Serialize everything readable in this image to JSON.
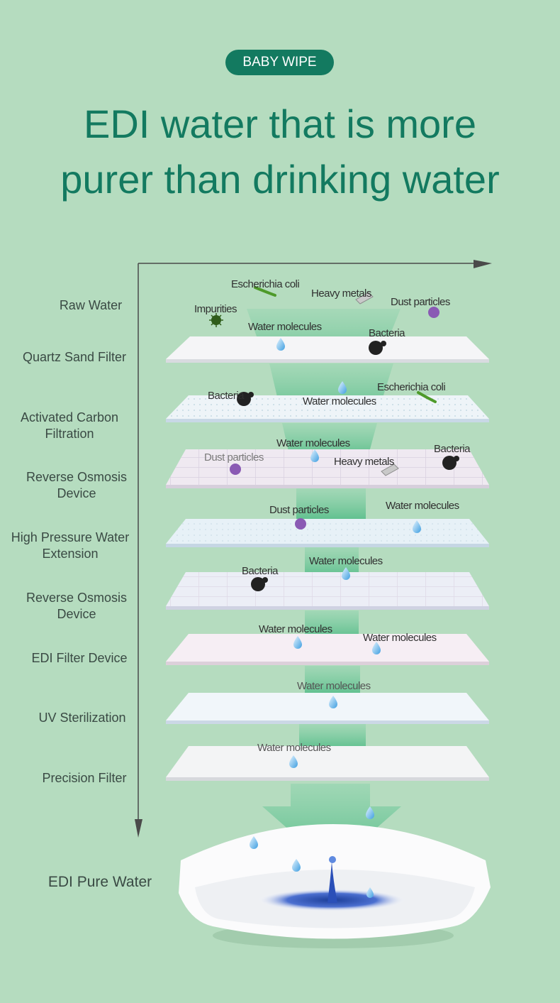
{
  "badge": "BABY WIPE",
  "headline": {
    "line1": "EDI water that is more",
    "line2": "purer than drinking water"
  },
  "stages": [
    "Raw Water",
    "Quartz Sand Filter",
    "Activated Carbon Filtration",
    "Reverse Osmosis Device",
    "High Pressure Water Extension",
    "Reverse Osmosis Device",
    "EDI Filter Device",
    "UV Sterilization",
    "Precision Filter",
    "EDI Pure Water"
  ],
  "particle_labels": {
    "raw_ecoli": "Escherichia coli",
    "raw_heavy_metals": "Heavy metals",
    "raw_dust": "Dust particles",
    "raw_impurities": "Impurities",
    "raw_water": "Water molecules",
    "raw_bacteria": "Bacteria",
    "quartz_bacteria": "Bacteria",
    "quartz_ecoli": "Escherichia coli",
    "quartz_water": "Water molecules",
    "carbon_water": "Water molecules",
    "carbon_dust": "Dust particles",
    "carbon_bacteria": "Bacteria",
    "carbon_heavy_metals": "Heavy metals",
    "ro_dust": "Dust particles",
    "ro_water": "Water molecules",
    "hp_water": "Water molecules",
    "hp_bacteria": "Bacteria",
    "ro2_water_a": "Water molecules",
    "ro2_water_b": "Water molecules",
    "edi_water": "Water molecules",
    "uv_water": "Water molecules"
  },
  "colors": {
    "background": "#b5dcbf",
    "accent": "#137a60",
    "flow": "#6cc79a",
    "layer": "#f4f6f8"
  }
}
